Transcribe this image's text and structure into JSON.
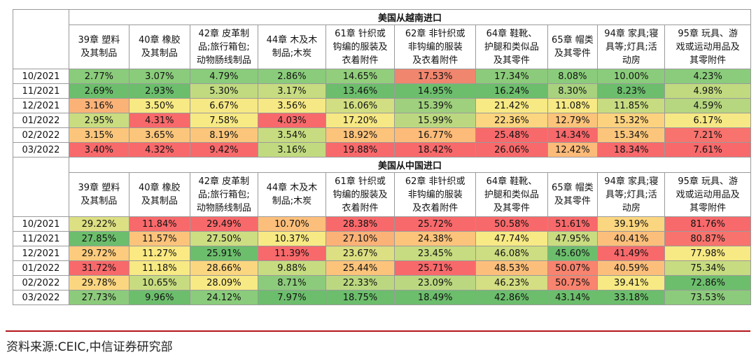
{
  "chart_data": [
    {
      "type": "table",
      "title": "美国从越南进口",
      "columns": [
        [
          "39章 塑料",
          "及其制品"
        ],
        [
          "40章 橡胶",
          "及其制品"
        ],
        [
          "42章 皮革制",
          "品;旅行箱包;",
          "动物肠线制品"
        ],
        [
          "44章 木及木",
          "制品;木炭"
        ],
        [
          "61章 针织或",
          "钩编的服装及",
          "衣着附件"
        ],
        [
          "62章 非针织或",
          "非钩编的服装",
          "及衣着附件"
        ],
        [
          "64章 鞋靴、",
          "护腿和类似品",
          "及其零件"
        ],
        [
          "65章 帽类",
          "及其零件"
        ],
        [
          "94章 家具;寝",
          "具等;灯具;活",
          "动房"
        ],
        [
          "95章 玩具、游",
          "戏或运动用品及",
          "其零附件"
        ]
      ],
      "rows": [
        {
          "date": "10/2021",
          "values": [
            "2.77%",
            "3.07%",
            "4.79%",
            "2.86%",
            "14.65%",
            "17.53%",
            "17.34%",
            "8.08%",
            "10.00%",
            "4.23%"
          ]
        },
        {
          "date": "11/2021",
          "values": [
            "2.69%",
            "2.93%",
            "5.30%",
            "3.17%",
            "13.46%",
            "14.95%",
            "16.24%",
            "8.30%",
            "8.23%",
            "4.98%"
          ]
        },
        {
          "date": "12/2021",
          "values": [
            "3.16%",
            "3.50%",
            "6.67%",
            "3.56%",
            "16.06%",
            "15.39%",
            "21.42%",
            "11.08%",
            "11.85%",
            "4.59%"
          ]
        },
        {
          "date": "01/2022",
          "values": [
            "2.95%",
            "4.31%",
            "7.58%",
            "4.03%",
            "17.20%",
            "15.99%",
            "22.36%",
            "12.79%",
            "15.32%",
            "6.17%"
          ]
        },
        {
          "date": "02/2022",
          "values": [
            "3.15%",
            "3.65%",
            "8.19%",
            "3.54%",
            "18.92%",
            "16.77%",
            "25.48%",
            "14.34%",
            "15.34%",
            "7.21%"
          ]
        },
        {
          "date": "03/2022",
          "values": [
            "3.40%",
            "4.32%",
            "9.42%",
            "3.16%",
            "19.88%",
            "18.42%",
            "26.06%",
            "12.42%",
            "18.34%",
            "7.61%"
          ]
        }
      ],
      "colors": [
        [
          "#8acc7b",
          "#8acc7b",
          "#8acc7b",
          "#8acc7b",
          "#92ce7c",
          "#f0866e",
          "#8ccb7b",
          "#8acc7b",
          "#8acc7b",
          "#8acc7b"
        ],
        [
          "#6cbe6c",
          "#6cbe6c",
          "#c1da80",
          "#c7dc80",
          "#6cbe6c",
          "#6cbe6c",
          "#6cbe6c",
          "#a9d27e",
          "#6cbe6c",
          "#c1da80"
        ],
        [
          "#fbb277",
          "#f7e984",
          "#f6e884",
          "#f6e884",
          "#d2de82",
          "#9fd07d",
          "#f7e984",
          "#f7e984",
          "#c7dc80",
          "#b6d67f"
        ],
        [
          "#c9dc80",
          "#f8696b",
          "#f7e984",
          "#f8696b",
          "#f6e884",
          "#bbd880",
          "#fbd57f",
          "#fcc47a",
          "#fcd27f",
          "#f6e884"
        ],
        [
          "#fbc67b",
          "#fbc67b",
          "#fbc67b",
          "#c7dc80",
          "#fcc37b",
          "#fcbb79",
          "#f8696b",
          "#f8696b",
          "#fbc67b",
          "#f8736d"
        ],
        [
          "#f8696b",
          "#f8696b",
          "#f8696b",
          "#c1da80",
          "#f8696b",
          "#f8696b",
          "#f8696b",
          "#fcbb79",
          "#f8696b",
          "#f8696b"
        ]
      ]
    },
    {
      "type": "table",
      "title": "美国从中国进口",
      "columns": [
        [
          "39章 塑料",
          "及其制品"
        ],
        [
          "40章 橡胶",
          "及其制品"
        ],
        [
          "42章 皮革制",
          "品;旅行箱包;",
          "动物肠线制品"
        ],
        [
          "44章 木及木",
          "制品;木炭"
        ],
        [
          "61章 针织或",
          "钩编的服装及",
          "衣着附件"
        ],
        [
          "62章 非针织或",
          "非钩编的服装",
          "及衣着附件"
        ],
        [
          "64章 鞋靴、",
          "护腿和类似品",
          "及其零件"
        ],
        [
          "65章 帽类",
          "及其零件"
        ],
        [
          "94章 家具;寝",
          "具等;灯具;活",
          "动房"
        ],
        [
          "95章 玩具、游",
          "戏或运动用品及",
          "其零附件"
        ]
      ],
      "rows": [
        {
          "date": "10/2021",
          "values": [
            "29.22%",
            "11.84%",
            "29.49%",
            "10.70%",
            "28.38%",
            "25.72%",
            "50.58%",
            "51.61%",
            "39.19%",
            "81.76%"
          ]
        },
        {
          "date": "11/2021",
          "values": [
            "27.85%",
            "11.57%",
            "27.50%",
            "10.37%",
            "27.10%",
            "24.38%",
            "47.74%",
            "47.95%",
            "40.41%",
            "80.87%"
          ]
        },
        {
          "date": "12/2021",
          "values": [
            "29.72%",
            "11.27%",
            "25.91%",
            "11.39%",
            "23.67%",
            "23.45%",
            "46.08%",
            "45.60%",
            "41.49%",
            "77.98%"
          ]
        },
        {
          "date": "01/2022",
          "values": [
            "31.72%",
            "11.18%",
            "28.66%",
            "9.88%",
            "25.44%",
            "25.71%",
            "48.53%",
            "50.07%",
            "40.59%",
            "75.34%"
          ]
        },
        {
          "date": "02/2022",
          "values": [
            "29.78%",
            "10.65%",
            "28.09%",
            "8.71%",
            "22.33%",
            "23.09%",
            "46.23%",
            "50.75%",
            "39.41%",
            "72.86%"
          ]
        },
        {
          "date": "03/2022",
          "values": [
            "27.73%",
            "9.96%",
            "24.12%",
            "7.97%",
            "18.75%",
            "18.49%",
            "42.86%",
            "43.14%",
            "33.18%",
            "73.53%"
          ]
        }
      ],
      "colors": [
        [
          "#dcdf82",
          "#f8696b",
          "#f8696b",
          "#fcbf7b",
          "#f8696b",
          "#f8696b",
          "#f8696b",
          "#f8696b",
          "#fbd680",
          "#f8696b"
        ],
        [
          "#6cbe6c",
          "#fcc37b",
          "#cddd81",
          "#f7e984",
          "#fbb277",
          "#fcc37b",
          "#f7e984",
          "#c9dc80",
          "#fcbf7b",
          "#f8736d"
        ],
        [
          "#fccb7d",
          "#fbe983",
          "#6cbe6c",
          "#f8696b",
          "#dcdf82",
          "#c7dc80",
          "#cddd81",
          "#6cbe6c",
          "#f8696b",
          "#f7e984"
        ],
        [
          "#f8696b",
          "#f7e984",
          "#fbd680",
          "#c7dc80",
          "#fcc37b",
          "#f8696b",
          "#fcbf7b",
          "#f8836e",
          "#fcbf7b",
          "#c7dc80"
        ],
        [
          "#fbd680",
          "#c7dc80",
          "#f7e984",
          "#8ccb7b",
          "#bbd880",
          "#bbd880",
          "#d4de82",
          "#f8836e",
          "#f7e984",
          "#6cbe6c"
        ],
        [
          "#8ccb7b",
          "#6cbe6c",
          "#8acc7b",
          "#6cbe6c",
          "#6cbe6c",
          "#6cbe6c",
          "#6cbe6c",
          "#6cbe6c",
          "#6cbe6c",
          "#8ccb7b"
        ]
      ]
    }
  ],
  "footer": {
    "source": "资料来源:CEIC,中信证券研究部"
  }
}
